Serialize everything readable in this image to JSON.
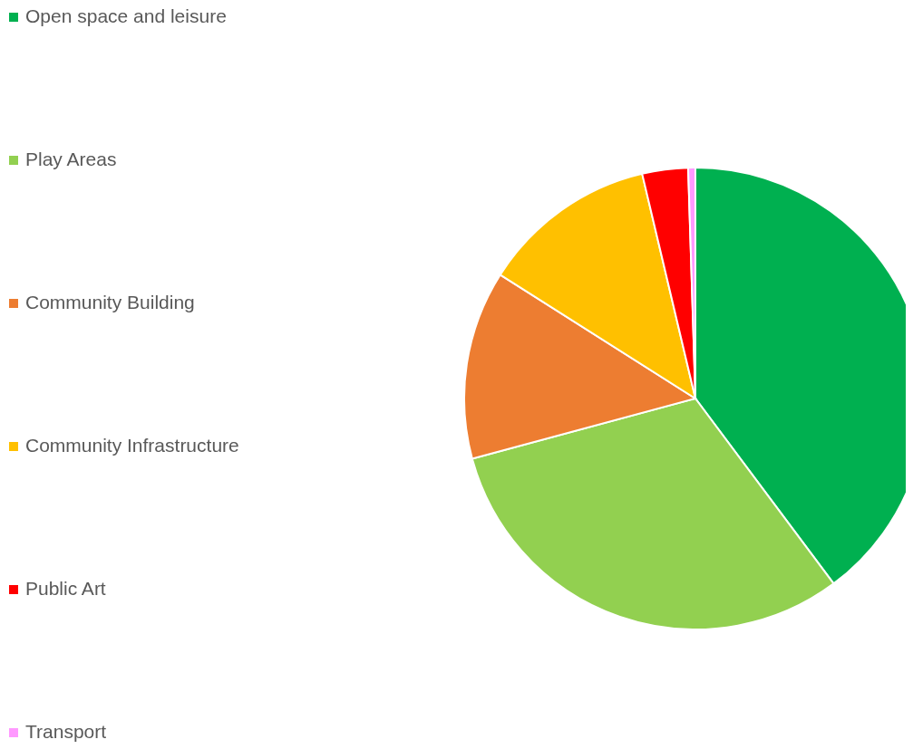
{
  "chart_data": {
    "type": "pie",
    "categories": [
      "Open space and leisure",
      "Play Areas",
      "Community Building",
      "Community Infrastructure",
      "Public Art",
      "Transport"
    ],
    "values": [
      39.8,
      31.0,
      13.2,
      12.3,
      3.2,
      0.5
    ],
    "colors": [
      "#00b050",
      "#92d050",
      "#ed7d31",
      "#ffc000",
      "#ff0000",
      "#ff99ff"
    ],
    "legend": "left"
  }
}
